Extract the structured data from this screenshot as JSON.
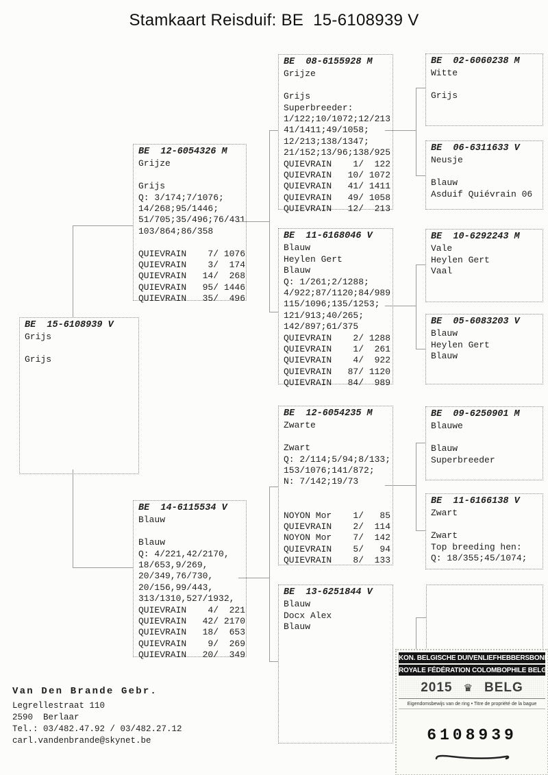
{
  "title": "Stamkaart Reisduif: BE  15-6108939 V",
  "pedigree": {
    "subject": {
      "header": "BE  15-6108939 V",
      "lines": [
        "Grijs",
        "",
        "Grijs"
      ]
    },
    "sire": {
      "header": "BE  12-6054326 M",
      "lines": [
        "Grijze",
        "",
        "Grijs",
        "Q: 3/174;7/1076;",
        "14/268;95/1446;",
        "51/705;35/496;76/431",
        "103/864;86/358",
        "",
        "QUIEVRAIN    7/ 1076",
        "QUIEVRAIN    3/  174",
        "QUIEVRAIN   14/  268",
        "QUIEVRAIN   95/ 1446",
        "QUIEVRAIN   35/  496"
      ]
    },
    "dam": {
      "header": "BE  14-6115534 V",
      "lines": [
        "Blauw",
        "",
        "Blauw",
        "Q: 4/221,42/2170,",
        "18/653,9/269,",
        "20/349,76/730,",
        "20/156,99/443,",
        "313/1310,527/1932,",
        "QUIEVRAIN    4/  221",
        "QUIEVRAIN   42/ 2170",
        "QUIEVRAIN   18/  653",
        "QUIEVRAIN    9/  269",
        "QUIEVRAIN   20/  349"
      ]
    },
    "sire_sire": {
      "header": "BE  08-6155928 M",
      "lines": [
        "Grijze",
        "",
        "Grijs",
        "Superbreeder:",
        "1/122;10/1072;12/213",
        "41/1411;49/1058;",
        "12/213;138/1347;",
        "21/152;13/96;138/925",
        "QUIEVRAIN    1/  122",
        "QUIEVRAIN   10/ 1072",
        "QUIEVRAIN   41/ 1411",
        "QUIEVRAIN   49/ 1058",
        "QUIEVRAIN   12/  213"
      ]
    },
    "sire_dam": {
      "header": "BE  11-6168046 V",
      "lines": [
        "Blauw",
        "Heylen Gert",
        "Blauw",
        "Q: 1/261;2/1288;",
        "4/922;87/1120;84/989",
        "115/1096;135/1253;",
        "121/913;40/265;",
        "142/897;61/375",
        "QUIEVRAIN    2/ 1288",
        "QUIEVRAIN    1/  261",
        "QUIEVRAIN    4/  922",
        "QUIEVRAIN   87/ 1120",
        "QUIEVRAIN   84/  989"
      ]
    },
    "dam_sire": {
      "header": "BE  12-6054235 M",
      "lines": [
        "Zwarte",
        "",
        "Zwart",
        "Q: 2/114;5/94;8/133;",
        "153/1076;141/872;",
        "N: 7/142;19/73",
        "",
        "",
        "NOYON Mor    1/   85",
        "QUIEVRAIN    2/  114",
        "NOYON Mor    7/  142",
        "QUIEVRAIN    5/   94",
        "QUIEVRAIN    8/  133"
      ]
    },
    "dam_dam": {
      "header": "BE  13-6251844 V",
      "lines": [
        "Blauw",
        "Docx Alex",
        "Blauw"
      ]
    },
    "ss_sire": {
      "header": "BE  02-6060238 M",
      "lines": [
        "Witte",
        "",
        "Grijs"
      ]
    },
    "ss_dam": {
      "header": "BE  06-6311633 V",
      "lines": [
        "Neusje",
        "",
        "Blauw",
        "Asduif Quiévrain 06"
      ]
    },
    "sd_sire": {
      "header": "BE  10-6292243 M",
      "lines": [
        "Vale",
        "Heylen Gert",
        "Vaal"
      ]
    },
    "sd_dam": {
      "header": "BE  05-6083203 V",
      "lines": [
        "Blauw",
        "Heylen Gert",
        "Blauw"
      ]
    },
    "ds_sire": {
      "header": "BE  09-6250901 M",
      "lines": [
        "Blauwe",
        "",
        "Blauw",
        "Superbreeder"
      ]
    },
    "ds_dam": {
      "header": "BE  11-6166138 V",
      "lines": [
        "Zwart",
        "",
        "Zwart",
        "Top breeding hen:",
        "Q: 18/355;45/1074;"
      ]
    },
    "dd_sire": {
      "header": "",
      "lines": []
    }
  },
  "owner": {
    "name": "Van Den Brande Gebr.",
    "address_line1": "Legrellestraat 110",
    "address_line2": "2590  Berlaar",
    "phone": "Tel.: 03/482.47.92 / 03/482.27.12",
    "email": "carl.vandenbrande@skynet.be"
  },
  "stamp": {
    "org_nl": "KON. BELGISCHE DUIVENLIEFHEBBERSBOND",
    "org_fr": "ROYALE FÉDÉRATION COLOMBOPHILE BELGE",
    "year": "2015",
    "country": "BELG",
    "crown_icon": "crown-icon",
    "subtitle": "Eigendomsbewijs van de ring • Titre de propriété de la bague",
    "ring_number": "6108939"
  },
  "colors": {
    "paper": "#fcfcfa",
    "ink": "#1e1e1e",
    "box_border": "#8d8d8d",
    "stamp_bar_bg": "#141414",
    "stamp_bar_text": "#ffffff"
  }
}
